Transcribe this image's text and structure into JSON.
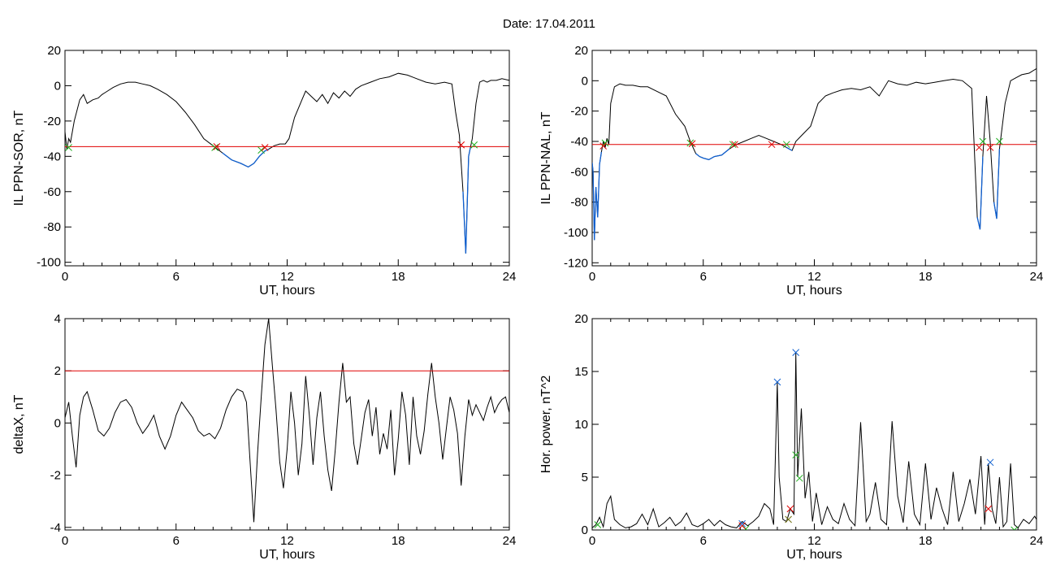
{
  "title": "Date:  17.04.2011",
  "colors": {
    "trace": "#000000",
    "threshold": "#e00000",
    "below": "#1060d0",
    "mark_red": "#e00000",
    "mark_green": "#20b020",
    "mark_blue": "#1060d0",
    "mark_olive": "#707010"
  },
  "chart_data": [
    {
      "type": "line",
      "xlabel": "UT, hours",
      "ylabel": "IL PPN-SOR, nT",
      "xlim": [
        0,
        24
      ],
      "ylim": [
        -102,
        20
      ],
      "xticks": [
        0,
        6,
        12,
        18,
        24
      ],
      "yticks": [
        -100,
        -80,
        -60,
        -40,
        -20,
        0,
        20
      ],
      "threshold": -34.5,
      "series": {
        "x": [
          0,
          0.1,
          0.2,
          0.3,
          0.5,
          0.8,
          1.0,
          1.2,
          1.5,
          1.8,
          2.0,
          2.3,
          2.6,
          3.0,
          3.4,
          3.8,
          4.2,
          4.6,
          5.0,
          5.5,
          6.0,
          6.5,
          7.0,
          7.5,
          8.0,
          8.5,
          9.0,
          9.5,
          9.9,
          10.2,
          10.5,
          10.8,
          11.0,
          11.3,
          11.6,
          11.9,
          12.1,
          12.4,
          12.8,
          13.0,
          13.3,
          13.6,
          13.9,
          14.2,
          14.5,
          14.8,
          15.1,
          15.4,
          15.7,
          16.0,
          16.5,
          17.0,
          17.5,
          18.0,
          18.5,
          19.0,
          19.5,
          20.0,
          20.5,
          20.9,
          21.1,
          21.3,
          21.5,
          21.65,
          21.8,
          21.9,
          22.0,
          22.2,
          22.4,
          22.6,
          22.8,
          23.0,
          23.3,
          23.6,
          24.0
        ],
        "y": [
          -26,
          -36,
          -30,
          -32,
          -20,
          -8,
          -5,
          -10,
          -8,
          -7,
          -5,
          -3,
          -1,
          1,
          2,
          2,
          1,
          0,
          -2,
          -5,
          -9,
          -15,
          -22,
          -30,
          -34,
          -38,
          -42,
          -44,
          -46,
          -44,
          -40,
          -37,
          -36,
          -34,
          -33,
          -33,
          -30,
          -18,
          -8,
          -3,
          -6,
          -9,
          -5,
          -10,
          -4,
          -7,
          -3,
          -6,
          -2,
          0,
          2,
          4,
          5,
          7,
          6,
          4,
          2,
          1,
          2,
          1,
          -15,
          -28,
          -60,
          -95,
          -40,
          -35,
          -30,
          -10,
          2,
          3,
          2,
          3,
          3,
          4,
          3
        ]
      },
      "markers_red_x": [
        [
          8.2,
          -34.5
        ],
        [
          10.8,
          -35
        ],
        [
          21.4,
          -33.5
        ]
      ],
      "markers_green_x": [
        [
          0.2,
          -35
        ],
        [
          8.1,
          -35
        ],
        [
          10.6,
          -36.5
        ],
        [
          22.1,
          -33.5
        ]
      ]
    },
    {
      "type": "line",
      "xlabel": "UT, hours",
      "ylabel": "IL PPN-NAL, nT",
      "xlim": [
        0,
        24
      ],
      "ylim": [
        -122,
        20
      ],
      "xticks": [
        0,
        6,
        12,
        18,
        24
      ],
      "yticks": [
        -120,
        -100,
        -80,
        -60,
        -40,
        -20,
        0,
        20
      ],
      "threshold": -42,
      "series": {
        "x": [
          0,
          0.05,
          0.12,
          0.2,
          0.3,
          0.4,
          0.5,
          0.6,
          0.7,
          0.8,
          0.9,
          1.0,
          1.2,
          1.5,
          1.8,
          2.2,
          2.6,
          3.0,
          3.5,
          4.0,
          4.5,
          5.0,
          5.3,
          5.6,
          5.8,
          6.0,
          6.3,
          6.6,
          7.0,
          7.4,
          7.8,
          8.2,
          8.6,
          9.0,
          9.4,
          9.8,
          10.2,
          10.5,
          10.8,
          11.0,
          11.4,
          11.8,
          12.2,
          12.6,
          13.0,
          13.5,
          14.0,
          14.5,
          15.0,
          15.5,
          16.0,
          16.5,
          17.0,
          17.5,
          18.0,
          18.5,
          19.0,
          19.5,
          20.0,
          20.5,
          20.8,
          20.95,
          21.1,
          21.3,
          21.5,
          21.7,
          21.85,
          22.0,
          22.3,
          22.6,
          22.9,
          23.2,
          23.6,
          24.0
        ],
        "y": [
          -54,
          -60,
          -105,
          -70,
          -90,
          -55,
          -47,
          -40,
          -44,
          -38,
          -42,
          -15,
          -4,
          -2,
          -3,
          -3,
          -4,
          -4,
          -7,
          -10,
          -22,
          -30,
          -40,
          -48,
          -50,
          -51,
          -52,
          -50,
          -49,
          -45,
          -42,
          -40,
          -38,
          -36,
          -38,
          -40,
          -42,
          -44,
          -46,
          -40,
          -35,
          -30,
          -15,
          -10,
          -8,
          -6,
          -5,
          -6,
          -4,
          -10,
          0,
          -2,
          -3,
          -1,
          -2,
          -1,
          0,
          1,
          0,
          -5,
          -90,
          -98,
          -50,
          -10,
          -40,
          -80,
          -91,
          -45,
          -15,
          0,
          2,
          4,
          5,
          8
        ]
      },
      "markers_red_x": [
        [
          0.6,
          -43
        ],
        [
          5.4,
          -41.5
        ],
        [
          7.7,
          -42
        ],
        [
          9.7,
          -42
        ],
        [
          20.9,
          -44
        ],
        [
          21.5,
          -44
        ]
      ],
      "markers_green_x": [
        [
          0.7,
          -41
        ],
        [
          5.3,
          -41
        ],
        [
          7.6,
          -42
        ],
        [
          10.5,
          -42
        ],
        [
          21.1,
          -40
        ],
        [
          22.0,
          -40
        ]
      ]
    },
    {
      "type": "line",
      "xlabel": "UT, hours",
      "ylabel": "deltaX, nT",
      "xlim": [
        0,
        24
      ],
      "ylim": [
        -4.1,
        4
      ],
      "xticks": [
        0,
        6,
        12,
        18,
        24
      ],
      "yticks": [
        -4,
        -2,
        0,
        2,
        4
      ],
      "threshold": 2,
      "series": {
        "x": [
          0,
          0.2,
          0.4,
          0.6,
          0.8,
          1.0,
          1.2,
          1.5,
          1.8,
          2.1,
          2.4,
          2.7,
          3.0,
          3.3,
          3.6,
          3.9,
          4.2,
          4.5,
          4.8,
          5.1,
          5.4,
          5.7,
          6.0,
          6.3,
          6.6,
          6.9,
          7.2,
          7.5,
          7.8,
          8.1,
          8.4,
          8.7,
          9.0,
          9.3,
          9.6,
          9.8,
          10.0,
          10.2,
          10.4,
          10.6,
          10.8,
          11.0,
          11.2,
          11.4,
          11.6,
          11.8,
          12.0,
          12.2,
          12.4,
          12.6,
          12.8,
          13.0,
          13.2,
          13.4,
          13.6,
          13.8,
          14.0,
          14.2,
          14.4,
          14.6,
          14.8,
          15.0,
          15.2,
          15.4,
          15.6,
          15.8,
          16.0,
          16.2,
          16.4,
          16.6,
          16.8,
          17.0,
          17.2,
          17.4,
          17.6,
          17.8,
          18.0,
          18.2,
          18.4,
          18.6,
          18.8,
          19.0,
          19.2,
          19.4,
          19.6,
          19.8,
          20.0,
          20.2,
          20.4,
          20.6,
          20.8,
          21.0,
          21.2,
          21.4,
          21.6,
          21.8,
          22.0,
          22.2,
          22.4,
          22.6,
          22.8,
          23.0,
          23.2,
          23.4,
          23.6,
          23.8,
          24.0
        ],
        "y": [
          0.2,
          0.8,
          -0.5,
          -1.7,
          0.3,
          1.0,
          1.2,
          0.5,
          -0.3,
          -0.5,
          -0.2,
          0.4,
          0.8,
          0.9,
          0.6,
          0.0,
          -0.4,
          -0.1,
          0.3,
          -0.5,
          -1.0,
          -0.5,
          0.3,
          0.8,
          0.5,
          0.2,
          -0.3,
          -0.5,
          -0.4,
          -0.6,
          -0.2,
          0.5,
          1.0,
          1.3,
          1.2,
          0.8,
          -1.5,
          -3.8,
          -1.2,
          1.0,
          3.0,
          4.0,
          2.2,
          0.5,
          -1.5,
          -2.5,
          -1.0,
          1.2,
          0.0,
          -2.0,
          -0.8,
          1.8,
          0.3,
          -1.6,
          0.2,
          1.2,
          -0.5,
          -1.8,
          -2.6,
          -1.0,
          0.8,
          2.3,
          0.8,
          1.0,
          -0.8,
          -1.6,
          -0.6,
          0.4,
          0.9,
          -0.5,
          0.6,
          -1.2,
          -0.4,
          -1.0,
          0.5,
          -2.0,
          -0.6,
          1.2,
          0.3,
          -1.6,
          1.0,
          -0.5,
          -1.2,
          -0.3,
          1.1,
          2.3,
          1.0,
          0.0,
          -1.4,
          -0.2,
          1.0,
          0.5,
          -0.4,
          -2.4,
          -0.5,
          0.9,
          0.3,
          0.7,
          0.4,
          0.1,
          0.6,
          1.0,
          0.4,
          0.7,
          0.9,
          1.0,
          0.4
        ]
      }
    },
    {
      "type": "line",
      "xlabel": "UT, hours",
      "ylabel": "Hor. power, nT^2",
      "xlim": [
        0,
        24
      ],
      "ylim": [
        0,
        20
      ],
      "xticks": [
        0,
        6,
        12,
        18,
        24
      ],
      "yticks": [
        0,
        5,
        10,
        15,
        20
      ],
      "series": {
        "x": [
          0,
          0.2,
          0.4,
          0.6,
          0.8,
          1.0,
          1.2,
          1.5,
          1.8,
          2.1,
          2.4,
          2.7,
          3.0,
          3.3,
          3.6,
          3.9,
          4.2,
          4.5,
          4.8,
          5.1,
          5.4,
          5.7,
          6.0,
          6.3,
          6.6,
          6.9,
          7.2,
          7.5,
          7.8,
          8.1,
          8.4,
          8.7,
          9.0,
          9.3,
          9.6,
          9.8,
          10.0,
          10.1,
          10.3,
          10.5,
          10.7,
          10.9,
          11.0,
          11.1,
          11.3,
          11.5,
          11.7,
          11.9,
          12.1,
          12.4,
          12.7,
          13.0,
          13.3,
          13.6,
          13.9,
          14.2,
          14.5,
          14.8,
          15.0,
          15.3,
          15.6,
          15.9,
          16.2,
          16.5,
          16.8,
          17.1,
          17.4,
          17.7,
          18.0,
          18.3,
          18.6,
          18.9,
          19.2,
          19.5,
          19.8,
          20.1,
          20.4,
          20.7,
          21.0,
          21.2,
          21.4,
          21.6,
          21.8,
          22.0,
          22.2,
          22.4,
          22.6,
          22.8,
          23.0,
          23.3,
          23.6,
          23.9,
          24.0
        ],
        "y": [
          0.2,
          0.5,
          1.2,
          0.3,
          2.5,
          3.2,
          1.0,
          0.5,
          0.2,
          0.3,
          0.6,
          1.5,
          0.5,
          2.0,
          0.3,
          0.7,
          1.2,
          0.4,
          0.8,
          1.6,
          0.5,
          0.3,
          0.6,
          1.0,
          0.4,
          0.9,
          0.5,
          0.3,
          0.2,
          0.8,
          0.4,
          0.8,
          1.3,
          2.5,
          2.0,
          0.5,
          14.0,
          5.0,
          1.0,
          0.8,
          2.0,
          1.5,
          16.8,
          5.0,
          11.5,
          3.0,
          5.5,
          0.8,
          3.5,
          0.5,
          2.2,
          1.0,
          0.6,
          2.5,
          1.0,
          0.4,
          10.2,
          0.8,
          1.5,
          4.5,
          1.0,
          0.5,
          10.3,
          3.2,
          0.7,
          6.5,
          1.5,
          0.5,
          6.3,
          1.0,
          4.0,
          2.0,
          0.5,
          5.5,
          0.8,
          2.5,
          4.8,
          1.5,
          7.0,
          0.5,
          6.3,
          2.0,
          0.6,
          5.0,
          0.3,
          0.8,
          6.3,
          0.5,
          0.2,
          1.0,
          0.6,
          1.3,
          1.0
        ]
      },
      "markers_blue_x": [
        [
          10.0,
          14.0
        ],
        [
          11.0,
          16.8
        ],
        [
          8.1,
          0.6
        ],
        [
          21.5,
          6.4
        ]
      ],
      "markers_red_x": [
        [
          8.1,
          0.4
        ],
        [
          10.7,
          2.0
        ],
        [
          21.4,
          2.0
        ]
      ],
      "markers_green_x": [
        [
          0.3,
          0.5
        ],
        [
          8.3,
          0.1
        ],
        [
          11.0,
          7.1
        ],
        [
          11.2,
          4.9
        ],
        [
          22.8,
          0.0
        ]
      ],
      "markers_olive_x": [
        [
          10.6,
          1.0
        ]
      ]
    }
  ]
}
